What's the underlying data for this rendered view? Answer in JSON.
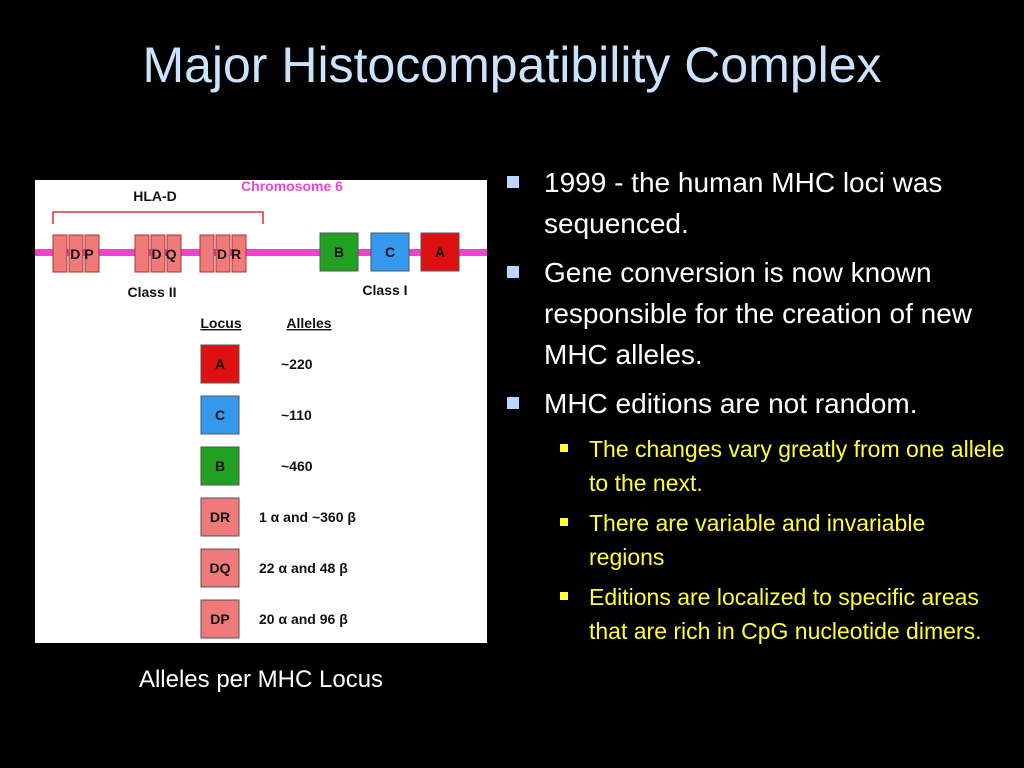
{
  "title": "Major Histocompatibility Complex",
  "figure": {
    "hla_d_label": "HLA-D",
    "chromosome_label": "Chromosome 6",
    "class2_label": "Class II",
    "class1_label": "Class I",
    "locus_header": "Locus",
    "alleles_header": "Alleles",
    "chromosome_genes": [
      {
        "label": "DP",
        "color": "#f07a7a"
      },
      {
        "label": "DQ",
        "color": "#f07a7a"
      },
      {
        "label": "DR",
        "color": "#f07a7a"
      },
      {
        "label": "B",
        "color": "#22a022"
      },
      {
        "label": "C",
        "color": "#3399ee"
      },
      {
        "label": "A",
        "color": "#dd1111"
      }
    ],
    "loci": [
      {
        "label": "A",
        "alleles": "~220",
        "color": "#dd1111"
      },
      {
        "label": "C",
        "alleles": "~110",
        "color": "#3399ee"
      },
      {
        "label": "B",
        "alleles": "~460",
        "color": "#22a022"
      },
      {
        "label": "DR",
        "alleles": "1 α and ~360 β",
        "color": "#f07a7a"
      },
      {
        "label": "DQ",
        "alleles": "22 α and 48 β",
        "color": "#f07a7a"
      },
      {
        "label": "DP",
        "alleles": "20 α and 96 β",
        "color": "#f07a7a"
      }
    ],
    "chromosome_color": "#ee44cc",
    "bracket_color": "#dd3333"
  },
  "caption": "Alleles per MHC Locus",
  "bullets": [
    {
      "text": "1999 - the human MHC loci was sequenced.",
      "sub": []
    },
    {
      "text": "Gene conversion is now known responsible for the creation of new MHC alleles.",
      "sub": []
    },
    {
      "text": "MHC editions are not random.",
      "sub": [
        "The changes vary greatly from one allele to the next.",
        "There are variable and invariable regions",
        "Editions are localized to specific areas that are rich in CpG nucleotide dimers."
      ]
    }
  ]
}
